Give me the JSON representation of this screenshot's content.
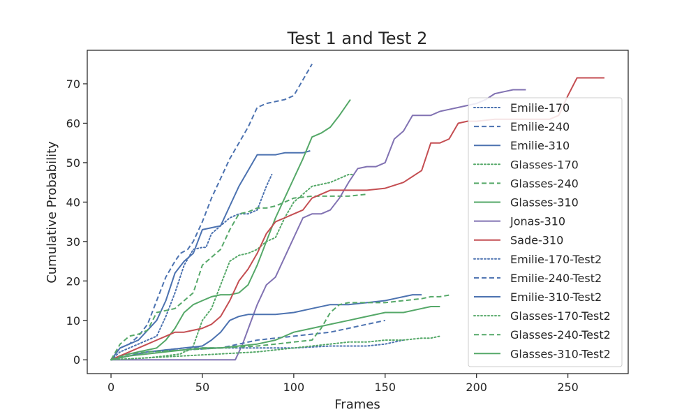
{
  "chart_data": {
    "type": "line",
    "title": "Test 1 and Test 2",
    "xlabel": "Frames",
    "ylabel": "Cumulative Probability",
    "xlim": [
      -13,
      283
    ],
    "ylim": [
      -3.5,
      78.5
    ],
    "xticks": [
      0,
      50,
      100,
      150,
      200,
      250
    ],
    "yticks": [
      0,
      10,
      20,
      30,
      40,
      50,
      60,
      70
    ],
    "grid": false,
    "legend_position": "right",
    "series": [
      {
        "name": "Emilie-170",
        "color": "#4c72b0",
        "dash": "dotted",
        "x": [
          0,
          5,
          10,
          15,
          20,
          25,
          30,
          35,
          40,
          45,
          50,
          52,
          55,
          60,
          65,
          70,
          75,
          80,
          85,
          88
        ],
        "y": [
          0,
          2,
          3,
          4,
          5,
          6,
          11,
          17,
          24,
          28,
          28.5,
          28.5,
          32,
          34,
          36,
          37,
          37,
          38,
          44,
          47
        ]
      },
      {
        "name": "Emilie-240",
        "color": "#4c72b0",
        "dash": "dashed",
        "x": [
          0,
          5,
          10,
          15,
          20,
          25,
          30,
          35,
          38,
          42,
          45,
          50,
          55,
          60,
          65,
          70,
          75,
          80,
          85,
          90,
          95,
          100,
          105,
          110
        ],
        "y": [
          0,
          3,
          4,
          6,
          9,
          15,
          21,
          25,
          27,
          28,
          30,
          35,
          41,
          46,
          51,
          55,
          59,
          64,
          65,
          65.5,
          66,
          67,
          71,
          75
        ]
      },
      {
        "name": "Emilie-310",
        "color": "#4c72b0",
        "dash": "solid",
        "x": [
          0,
          5,
          10,
          15,
          20,
          25,
          30,
          35,
          40,
          45,
          50,
          55,
          60,
          65,
          70,
          75,
          80,
          85,
          90,
          95,
          100,
          105,
          109
        ],
        "y": [
          0,
          3,
          4,
          5,
          7.5,
          10,
          15,
          22,
          25,
          27,
          33,
          33.5,
          34,
          39,
          44,
          48,
          52,
          52,
          52,
          52.5,
          52.5,
          52.5,
          53
        ]
      },
      {
        "name": "Glasses-170",
        "color": "#55a868",
        "dash": "dotted",
        "x": [
          0,
          20,
          30,
          38,
          40,
          43,
          45,
          50,
          55,
          60,
          65,
          70,
          75,
          80,
          85,
          90,
          95,
          100,
          105,
          110,
          115,
          120,
          125,
          130,
          132
        ],
        "y": [
          0,
          0.5,
          1,
          1.5,
          2,
          2.5,
          3.5,
          10,
          13,
          19,
          25,
          26.5,
          27,
          28,
          30,
          31,
          36,
          40,
          42,
          44,
          44.5,
          45,
          46,
          47,
          47
        ]
      },
      {
        "name": "Glasses-240",
        "color": "#55a868",
        "dash": "dashed",
        "x": [
          0,
          5,
          10,
          15,
          20,
          25,
          30,
          35,
          40,
          45,
          50,
          55,
          60,
          65,
          70,
          75,
          80,
          85,
          90,
          95,
          100,
          110,
          120,
          130,
          140
        ],
        "y": [
          0,
          4,
          6,
          6.5,
          7.5,
          12,
          12.5,
          13,
          15,
          17,
          24,
          26,
          28,
          33,
          37,
          37.5,
          38.5,
          38.5,
          39,
          40,
          41,
          41.5,
          41.5,
          41.5,
          42
        ]
      },
      {
        "name": "Glasses-310",
        "color": "#55a868",
        "dash": "solid",
        "x": [
          0,
          5,
          10,
          15,
          20,
          25,
          30,
          35,
          40,
          45,
          50,
          55,
          60,
          65,
          70,
          75,
          80,
          85,
          90,
          95,
          100,
          105,
          110,
          115,
          120,
          125,
          131
        ],
        "y": [
          0,
          1,
          1.5,
          2,
          2.5,
          3,
          5,
          8,
          12,
          14,
          15,
          16,
          16.5,
          16.5,
          17,
          19,
          24,
          30,
          36,
          41,
          46,
          51,
          56.5,
          57.5,
          59,
          62,
          66
        ]
      },
      {
        "name": "Jonas-310",
        "color": "#8172b2",
        "dash": "solid",
        "x": [
          0,
          60,
          68,
          72,
          76,
          80,
          85,
          90,
          95,
          100,
          105,
          110,
          115,
          120,
          125,
          130,
          135,
          140,
          145,
          150,
          155,
          160,
          165,
          170,
          175,
          180,
          185,
          190,
          195,
          200,
          205,
          210,
          215,
          220,
          227
        ],
        "y": [
          0,
          0,
          0,
          4,
          9,
          14,
          19,
          21,
          26,
          31,
          36,
          37,
          37,
          38,
          41,
          45,
          48.5,
          49,
          49,
          50,
          56,
          58,
          62,
          62,
          62,
          63,
          63.5,
          64,
          64.5,
          65,
          66,
          67.5,
          68,
          68.5,
          68.5
        ]
      },
      {
        "name": "Sade-310",
        "color": "#c44e52",
        "dash": "solid",
        "x": [
          0,
          5,
          10,
          15,
          20,
          25,
          30,
          35,
          40,
          45,
          50,
          55,
          60,
          65,
          70,
          75,
          80,
          85,
          90,
          95,
          100,
          105,
          110,
          115,
          120,
          130,
          140,
          150,
          160,
          170,
          175,
          180,
          185,
          190,
          195,
          200,
          210,
          220,
          230,
          240,
          245,
          250,
          255,
          260,
          270
        ],
        "y": [
          0,
          1,
          2,
          3,
          4,
          5,
          6,
          7,
          7,
          7.5,
          8,
          9,
          11,
          15,
          20,
          23,
          27,
          32,
          35,
          36,
          37,
          38,
          41,
          42,
          43,
          43,
          43,
          43.5,
          45,
          48,
          55,
          55,
          56,
          60,
          60.5,
          60.5,
          61,
          61,
          61,
          61,
          62,
          67,
          71.5,
          71.5,
          71.5
        ]
      },
      {
        "name": "Emilie-170-Test2",
        "color": "#4c72b0",
        "dash": "dotted",
        "x": [
          0,
          10,
          20,
          40,
          60,
          80,
          100,
          120,
          140,
          150,
          155,
          160
        ],
        "y": [
          0,
          1,
          2,
          2.5,
          3,
          3,
          3,
          3.5,
          3.5,
          4,
          4.5,
          5
        ]
      },
      {
        "name": "Emilie-240-Test2",
        "color": "#4c72b0",
        "dash": "dashed",
        "x": [
          0,
          10,
          20,
          40,
          60,
          70,
          80,
          90,
          100,
          110,
          120,
          130,
          140,
          150
        ],
        "y": [
          0,
          1.5,
          2,
          3,
          3,
          4,
          5,
          5.5,
          6,
          6.5,
          7,
          8,
          9,
          10
        ]
      },
      {
        "name": "Emilie-310-Test2",
        "color": "#4c72b0",
        "dash": "solid",
        "x": [
          0,
          10,
          20,
          30,
          40,
          50,
          55,
          60,
          65,
          70,
          75,
          80,
          90,
          100,
          110,
          120,
          130,
          140,
          150,
          155,
          160,
          165,
          170
        ],
        "y": [
          0,
          1,
          2,
          2.5,
          3,
          3.5,
          5,
          7,
          10,
          11,
          11.5,
          11.5,
          11.5,
          12,
          13,
          14,
          14,
          14.5,
          15,
          15.5,
          16,
          16.5,
          16.5
        ]
      },
      {
        "name": "Glasses-170-Test2",
        "color": "#55a868",
        "dash": "dotted",
        "x": [
          0,
          20,
          40,
          60,
          80,
          100,
          110,
          120,
          130,
          140,
          150,
          160,
          170,
          175,
          180
        ],
        "y": [
          0,
          0.5,
          1,
          1.5,
          2,
          3,
          3.5,
          4,
          4.5,
          4.5,
          5,
          5,
          5.5,
          5.5,
          6
        ]
      },
      {
        "name": "Glasses-240-Test2",
        "color": "#55a868",
        "dash": "dashed",
        "x": [
          0,
          10,
          20,
          40,
          60,
          80,
          90,
          100,
          110,
          115,
          120,
          125,
          130,
          140,
          150,
          160,
          170,
          175,
          180,
          186
        ],
        "y": [
          0,
          1.5,
          2,
          2.5,
          3,
          3.5,
          4,
          4.5,
          5,
          8,
          12,
          14,
          14.5,
          14.5,
          14.5,
          15,
          15.5,
          16,
          16,
          16.5
        ]
      },
      {
        "name": "Glasses-310-Test2",
        "color": "#55a868",
        "dash": "solid",
        "x": [
          0,
          10,
          20,
          30,
          40,
          50,
          60,
          70,
          80,
          90,
          100,
          110,
          120,
          130,
          140,
          150,
          160,
          170,
          175,
          180
        ],
        "y": [
          0,
          1,
          1.5,
          2,
          2.5,
          3,
          3,
          3.5,
          4,
          5,
          7,
          8,
          9,
          10,
          11,
          12,
          12,
          13,
          13.5,
          13.5
        ]
      }
    ]
  }
}
